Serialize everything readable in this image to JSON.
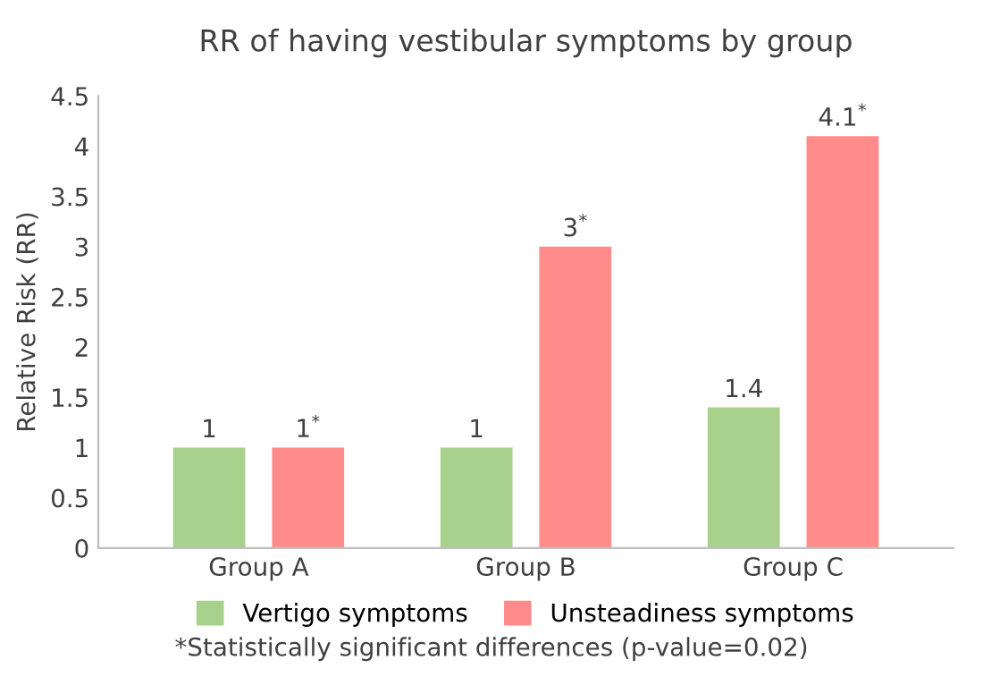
{
  "chart_data": {
    "type": "bar",
    "title": "RR of having vestibular symptoms by group",
    "ylabel": "Relative Risk (RR)",
    "categories": [
      "Group A",
      "Group B",
      "Group C"
    ],
    "series": [
      {
        "name": "Vertigo symptoms",
        "color": "#a9d18e",
        "values": [
          1,
          1,
          1.4
        ],
        "value_labels": [
          "1",
          "1",
          "1.4"
        ]
      },
      {
        "name": "Unsteadiness symptoms",
        "color": "#ff8b8b",
        "values": [
          1,
          3,
          4.1
        ],
        "value_labels": [
          "1$^{*}$",
          "3$^{*}$",
          "4.1$^{*}$"
        ]
      }
    ],
    "ylim": [
      0,
      4.5
    ],
    "yticks": [
      0,
      0.5,
      1,
      1.5,
      2,
      2.5,
      3,
      3.5,
      4,
      4.5
    ],
    "grid": false,
    "legend": "bottom",
    "annotations": [
      "*Statistically significant differences (p-value=0.02)"
    ]
  }
}
